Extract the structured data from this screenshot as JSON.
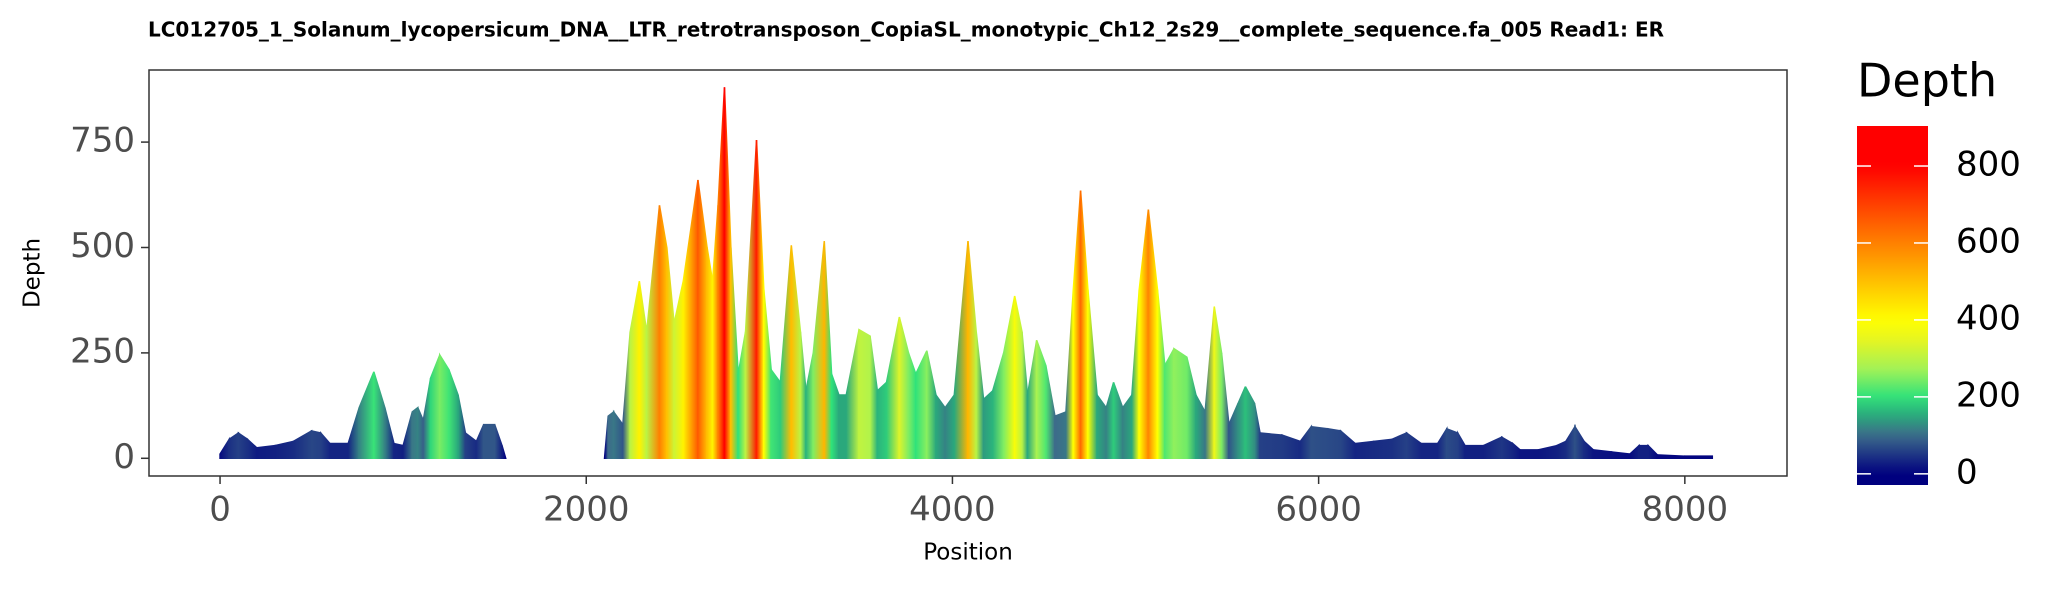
{
  "chart_data": {
    "type": "area",
    "title": "LC012705_1_Solanum_lycopersicum_DNA__LTR_retrotransposon_CopiaSL_monotypic_Ch12_2s29__complete_sequence.fa_005   Read1: ER",
    "x_label": "Position",
    "y_label": "Depth",
    "x": [
      0,
      50,
      100,
      150,
      200,
      300,
      400,
      500,
      550,
      600,
      700,
      760,
      840,
      900,
      950,
      1000,
      1050,
      1080,
      1110,
      1150,
      1200,
      1250,
      1300,
      1340,
      1400,
      1440,
      1500,
      1540,
      1560,
      2100,
      2120,
      2150,
      2200,
      2240,
      2290,
      2330,
      2400,
      2440,
      2480,
      2530,
      2610,
      2660,
      2690,
      2720,
      2755,
      2790,
      2830,
      2870,
      2930,
      2970,
      3010,
      3060,
      3120,
      3170,
      3200,
      3240,
      3300,
      3340,
      3380,
      3420,
      3490,
      3550,
      3590,
      3640,
      3710,
      3760,
      3800,
      3860,
      3910,
      3960,
      4010,
      4085,
      4130,
      4170,
      4220,
      4280,
      4340,
      4380,
      4410,
      4460,
      4510,
      4560,
      4620,
      4660,
      4700,
      4740,
      4790,
      4840,
      4880,
      4930,
      4980,
      5020,
      5070,
      5120,
      5160,
      5210,
      5280,
      5330,
      5380,
      5430,
      5470,
      5510,
      5560,
      5600,
      5650,
      5680,
      5800,
      5900,
      5960,
      6050,
      6120,
      6200,
      6300,
      6400,
      6480,
      6560,
      6650,
      6700,
      6760,
      6800,
      6900,
      7000,
      7060,
      7100,
      7200,
      7300,
      7350,
      7400,
      7450,
      7500,
      7600,
      7700,
      7750,
      7800,
      7850,
      8000,
      8150
    ],
    "values": [
      10,
      45,
      60,
      45,
      25,
      30,
      40,
      65,
      60,
      35,
      35,
      120,
      205,
      120,
      35,
      30,
      110,
      120,
      90,
      190,
      245,
      210,
      150,
      60,
      40,
      80,
      80,
      30,
      0,
      0,
      100,
      110,
      80,
      300,
      420,
      300,
      600,
      500,
      320,
      420,
      660,
      500,
      420,
      600,
      880,
      500,
      200,
      300,
      755,
      400,
      210,
      180,
      505,
      300,
      160,
      250,
      515,
      200,
      150,
      150,
      305,
      290,
      160,
      180,
      335,
      250,
      200,
      255,
      150,
      120,
      150,
      515,
      300,
      140,
      160,
      250,
      385,
      300,
      150,
      280,
      220,
      100,
      110,
      400,
      635,
      400,
      150,
      120,
      180,
      120,
      150,
      400,
      590,
      400,
      220,
      260,
      240,
      150,
      110,
      360,
      250,
      80,
      130,
      170,
      130,
      60,
      55,
      40,
      75,
      70,
      65,
      35,
      40,
      45,
      60,
      35,
      35,
      70,
      60,
      30,
      30,
      50,
      35,
      20,
      20,
      30,
      40,
      75,
      40,
      20,
      15,
      10,
      30,
      30,
      8,
      5,
      5
    ],
    "xlim": [
      -388,
      8558
    ],
    "ylim": [
      -42,
      921
    ],
    "xticks": [
      0,
      2000,
      4000,
      6000,
      8000
    ],
    "yticks": [
      0,
      250,
      500,
      750
    ],
    "grid": false,
    "colorscale": [
      {
        "value": 0,
        "color": "#00007f"
      },
      {
        "value": 100,
        "color": "#3d6b8a"
      },
      {
        "value": 150,
        "color": "#2aa87c"
      },
      {
        "value": 200,
        "color": "#30e27a"
      },
      {
        "value": 270,
        "color": "#a0f258"
      },
      {
        "value": 350,
        "color": "#e8f520"
      },
      {
        "value": 400,
        "color": "#ffff00"
      },
      {
        "value": 500,
        "color": "#ffc000"
      },
      {
        "value": 600,
        "color": "#ff8000"
      },
      {
        "value": 700,
        "color": "#ff4000"
      },
      {
        "value": 800,
        "color": "#ff0000"
      }
    ],
    "legend": {
      "title": "Depth",
      "position": "right",
      "ticks": [
        0,
        200,
        400,
        600,
        800
      ],
      "lim": [
        -29,
        904
      ]
    }
  }
}
